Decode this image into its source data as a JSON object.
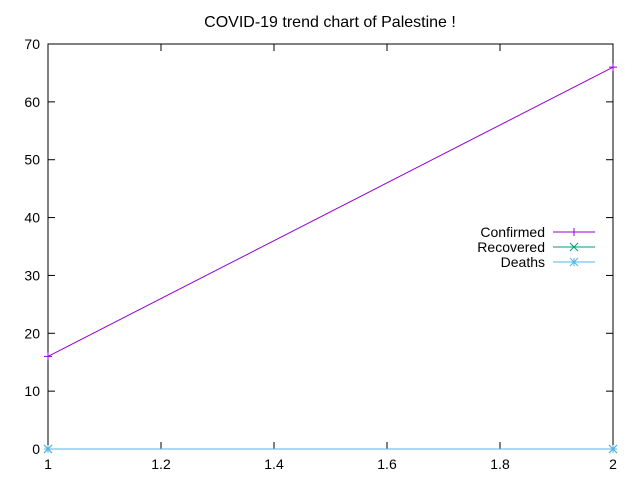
{
  "chart_data": {
    "type": "line",
    "title": "COVID-19 trend chart of Palestine !",
    "xlabel": "",
    "ylabel": "",
    "xlim": [
      1,
      2
    ],
    "ylim": [
      0,
      70
    ],
    "x_ticks": [
      1,
      1.2,
      1.4,
      1.6,
      1.8,
      2
    ],
    "x_tick_labels": [
      "1",
      "1.2",
      "1.4",
      "1.6",
      "1.8",
      "2"
    ],
    "y_ticks": [
      0,
      10,
      20,
      30,
      40,
      50,
      60,
      70
    ],
    "y_tick_labels": [
      "0",
      "10",
      "20",
      "30",
      "40",
      "50",
      "60",
      "70"
    ],
    "grid": false,
    "legend_position": "right",
    "x": [
      1,
      2
    ],
    "series": [
      {
        "name": "Confirmed",
        "values": [
          16,
          66
        ],
        "color": "#9400d3",
        "marker": "plus"
      },
      {
        "name": "Recovered",
        "values": [
          0,
          0
        ],
        "color": "#009e73",
        "marker": "cross"
      },
      {
        "name": "Deaths",
        "values": [
          0,
          0
        ],
        "color": "#56b4e9",
        "marker": "star"
      }
    ]
  }
}
